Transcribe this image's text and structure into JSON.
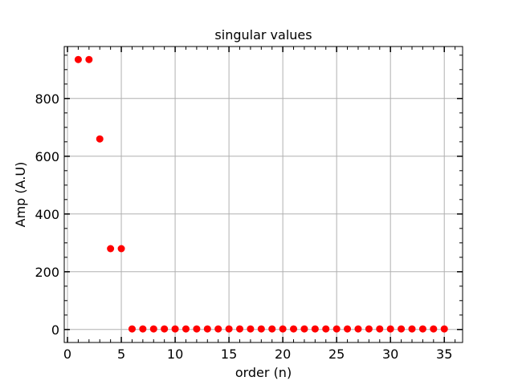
{
  "chart_data": {
    "type": "scatter",
    "title": "singular values",
    "xlabel": "order (n)",
    "ylabel": "Amp (A.U)",
    "xlim": [
      -0.3,
      36.7
    ],
    "ylim": [
      -45,
      980
    ],
    "xticks": [
      0,
      5,
      10,
      15,
      20,
      25,
      30,
      35
    ],
    "yticks": [
      0,
      200,
      400,
      600,
      800
    ],
    "grid": true,
    "marker_color": "#ff0000",
    "series": [
      {
        "x": [
          1,
          2,
          3,
          4,
          5,
          6,
          7,
          8,
          9,
          10,
          11,
          12,
          13,
          14,
          15,
          16,
          17,
          18,
          19,
          20,
          21,
          22,
          23,
          24,
          25,
          26,
          27,
          28,
          29,
          30,
          31,
          32,
          33,
          34,
          35
        ],
        "y": [
          935,
          935,
          660,
          280,
          280,
          2,
          2,
          2,
          2,
          2,
          2,
          2,
          2,
          2,
          2,
          2,
          2,
          2,
          2,
          2,
          2,
          2,
          2,
          2,
          2,
          2,
          2,
          2,
          2,
          2,
          2,
          2,
          2,
          2,
          2
        ]
      }
    ]
  }
}
